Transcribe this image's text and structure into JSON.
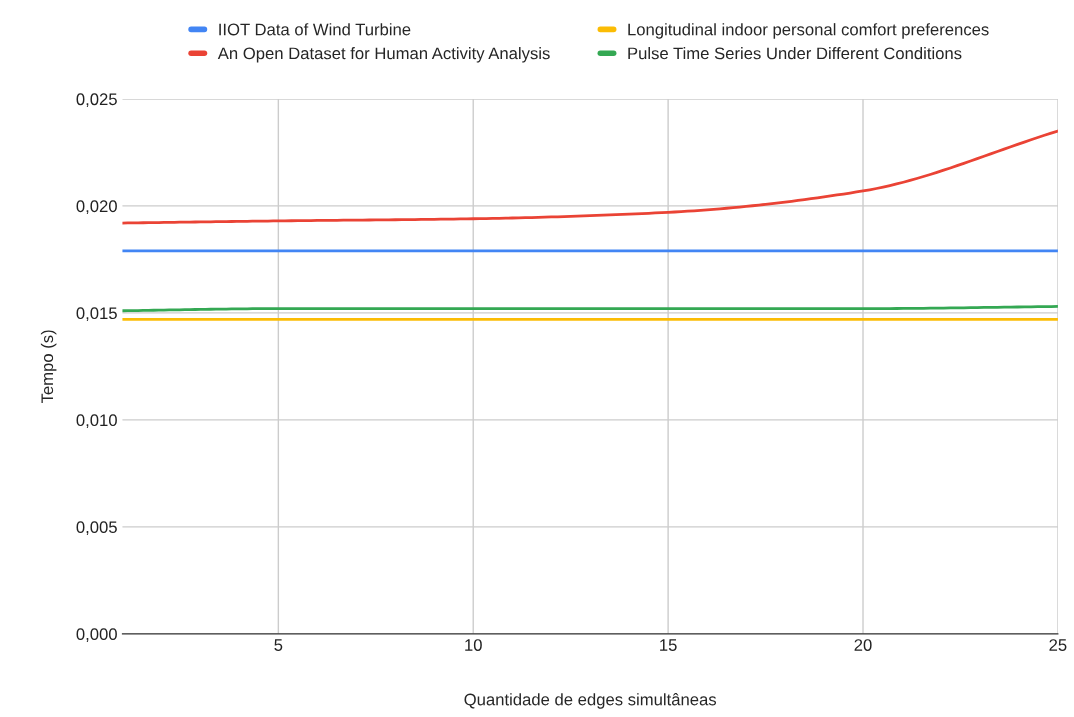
{
  "chart_data": {
    "type": "line",
    "xlabel": "Quantidade de edges simultâneas",
    "ylabel": "Tempo (s)",
    "x": [
      1,
      5,
      10,
      15,
      20,
      25
    ],
    "series": [
      {
        "name": "IIOT Data of Wind Turbine",
        "color": "#4285f4",
        "values": [
          0.0179,
          0.0179,
          0.0179,
          0.0179,
          0.0179,
          0.0179
        ]
      },
      {
        "name": "An Open Dataset for Human Activity Analysis",
        "color": "#ea4335",
        "values": [
          0.0192,
          0.0193,
          0.0194,
          0.0197,
          0.0207,
          0.0235
        ]
      },
      {
        "name": "Longitudinal indoor personal comfort preferences",
        "color": "#fbbc04",
        "values": [
          0.0147,
          0.0147,
          0.0147,
          0.0147,
          0.0147,
          0.0147
        ]
      },
      {
        "name": "Pulse Time Series Under Different Conditions",
        "color": "#34a853",
        "values": [
          0.0151,
          0.0152,
          0.0152,
          0.0152,
          0.0152,
          0.0153
        ]
      }
    ],
    "xlim": [
      1,
      25
    ],
    "xticks": [
      5,
      10,
      15,
      20,
      25
    ],
    "ylim": [
      0,
      0.025
    ],
    "yticks": [
      {
        "value": 0,
        "label": "0,000"
      },
      {
        "value": 0.005,
        "label": "0,005"
      },
      {
        "value": 0.01,
        "label": "0,010"
      },
      {
        "value": 0.015,
        "label": "0,015"
      },
      {
        "value": 0.02,
        "label": "0,020"
      },
      {
        "value": 0.025,
        "label": "0,025"
      }
    ],
    "grid": true,
    "legend": "top",
    "marker": "none",
    "line_style": "solid"
  }
}
